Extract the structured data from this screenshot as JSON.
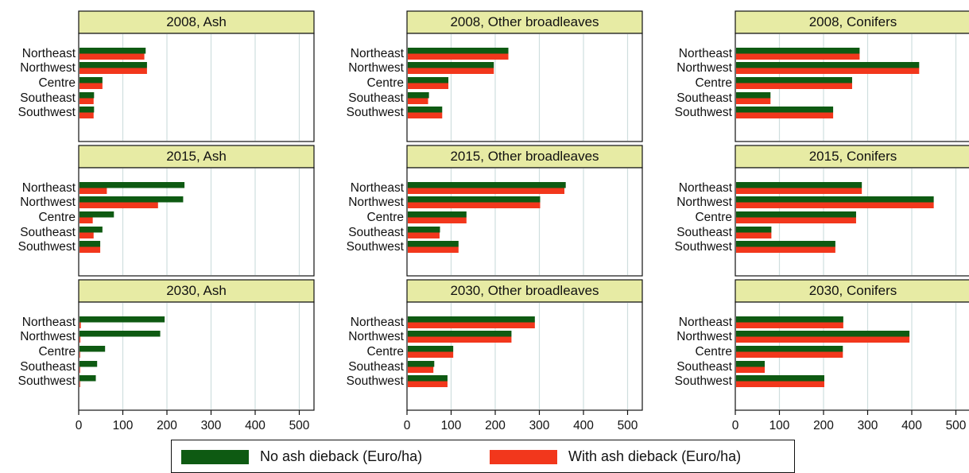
{
  "colors": {
    "no_dieback": "#0e5a12",
    "with_dieback": "#f2371c",
    "title_bg": "#e7eba4",
    "grid": "#cfdede"
  },
  "legend": {
    "no_dieback_label": "No ash dieback (Euro/ha)",
    "with_dieback_label": "With ash dieback (Euro/ha)",
    "placement": "bottom"
  },
  "chart_data": [
    {
      "type": "bar",
      "orientation": "horizontal",
      "title": "2008, Ash",
      "categories": [
        "Northeast",
        "Northwest",
        "Centre",
        "Southeast",
        "Southwest"
      ],
      "series": [
        {
          "name": "No ash dieback (Euro/ha)",
          "values": [
            150,
            153,
            52,
            33,
            33
          ]
        },
        {
          "name": "With ash dieback (Euro/ha)",
          "values": [
            147,
            153,
            52,
            32,
            32
          ]
        }
      ],
      "xlim": [
        0,
        550
      ],
      "xticks": [
        "0",
        "100",
        "200",
        "300",
        "400",
        "500"
      ],
      "grid": true
    },
    {
      "type": "bar",
      "orientation": "horizontal",
      "title": "2008, Other broadleaves",
      "categories": [
        "Northeast",
        "Northwest",
        "Centre",
        "Southeast",
        "Southwest"
      ],
      "series": [
        {
          "name": "No ash dieback (Euro/ha)",
          "values": [
            228,
            195,
            92,
            48,
            78
          ]
        },
        {
          "name": "With ash dieback (Euro/ha)",
          "values": [
            228,
            195,
            92,
            46,
            78
          ]
        }
      ],
      "xlim": [
        0,
        550
      ],
      "xticks": [
        "0",
        "100",
        "200",
        "300",
        "400",
        "500"
      ],
      "grid": true
    },
    {
      "type": "bar",
      "orientation": "horizontal",
      "title": "2008, Conifers",
      "categories": [
        "Northeast",
        "Northwest",
        "Centre",
        "Southeast",
        "Southwest"
      ],
      "series": [
        {
          "name": "No ash dieback (Euro/ha)",
          "values": [
            280,
            415,
            263,
            78,
            220
          ]
        },
        {
          "name": "With ash dieback (Euro/ha)",
          "values": [
            280,
            415,
            263,
            78,
            220
          ]
        }
      ],
      "xlim": [
        0,
        550
      ],
      "xticks": [
        "0",
        "100",
        "200",
        "300",
        "400",
        "500"
      ],
      "grid": true
    },
    {
      "type": "bar",
      "orientation": "horizontal",
      "title": "2015, Ash",
      "categories": [
        "Northeast",
        "Northwest",
        "Centre",
        "Southeast",
        "Southwest"
      ],
      "series": [
        {
          "name": "No ash dieback (Euro/ha)",
          "values": [
            238,
            235,
            78,
            52,
            47
          ]
        },
        {
          "name": "With ash dieback (Euro/ha)",
          "values": [
            62,
            178,
            30,
            32,
            47
          ]
        }
      ],
      "xlim": [
        0,
        550
      ],
      "xticks": [
        "0",
        "100",
        "200",
        "300",
        "400",
        "500"
      ],
      "grid": true
    },
    {
      "type": "bar",
      "orientation": "horizontal",
      "title": "2015, Other broadleaves",
      "categories": [
        "Northeast",
        "Northwest",
        "Centre",
        "Southeast",
        "Southwest"
      ],
      "series": [
        {
          "name": "No ash dieback (Euro/ha)",
          "values": [
            358,
            300,
            133,
            73,
            115
          ]
        },
        {
          "name": "With ash dieback (Euro/ha)",
          "values": [
            355,
            300,
            133,
            72,
            115
          ]
        }
      ],
      "xlim": [
        0,
        550
      ],
      "xticks": [
        "0",
        "100",
        "200",
        "300",
        "400",
        "500"
      ],
      "grid": true
    },
    {
      "type": "bar",
      "orientation": "horizontal",
      "title": "2015, Conifers",
      "categories": [
        "Northeast",
        "Northwest",
        "Centre",
        "Southeast",
        "Southwest"
      ],
      "series": [
        {
          "name": "No ash dieback (Euro/ha)",
          "values": [
            285,
            448,
            272,
            80,
            225
          ]
        },
        {
          "name": "With ash dieback (Euro/ha)",
          "values": [
            285,
            448,
            272,
            80,
            225
          ]
        }
      ],
      "xlim": [
        0,
        550
      ],
      "xticks": [
        "0",
        "100",
        "200",
        "300",
        "400",
        "500"
      ],
      "grid": true
    },
    {
      "type": "bar",
      "orientation": "horizontal",
      "title": "2030, Ash",
      "categories": [
        "Northeast",
        "Northwest",
        "Centre",
        "Southeast",
        "Southwest"
      ],
      "series": [
        {
          "name": "No ash dieback (Euro/ha)",
          "values": [
            193,
            183,
            58,
            40,
            37
          ]
        },
        {
          "name": "With ash dieback (Euro/ha)",
          "values": [
            3,
            2,
            1,
            1,
            1
          ]
        }
      ],
      "xlim": [
        0,
        550
      ],
      "xticks": [
        "0",
        "100",
        "200",
        "300",
        "400",
        "500"
      ],
      "grid": true
    },
    {
      "type": "bar",
      "orientation": "horizontal",
      "title": "2030, Other broadleaves",
      "categories": [
        "Northeast",
        "Northwest",
        "Centre",
        "Southeast",
        "Southwest"
      ],
      "series": [
        {
          "name": "No ash dieback (Euro/ha)",
          "values": [
            288,
            235,
            103,
            60,
            90
          ]
        },
        {
          "name": "With ash dieback (Euro/ha)",
          "values": [
            288,
            235,
            103,
            58,
            90
          ]
        }
      ],
      "xlim": [
        0,
        550
      ],
      "xticks": [
        "0",
        "100",
        "200",
        "300",
        "400",
        "500"
      ],
      "grid": true
    },
    {
      "type": "bar",
      "orientation": "horizontal",
      "title": "2030, Conifers",
      "categories": [
        "Northeast",
        "Northwest",
        "Centre",
        "Southeast",
        "Southwest"
      ],
      "series": [
        {
          "name": "No ash dieback (Euro/ha)",
          "values": [
            243,
            393,
            242,
            65,
            200
          ]
        },
        {
          "name": "With ash dieback (Euro/ha)",
          "values": [
            243,
            393,
            242,
            65,
            200
          ]
        }
      ],
      "xlim": [
        0,
        550
      ],
      "xticks": [
        "0",
        "100",
        "200",
        "300",
        "400",
        "500"
      ],
      "grid": true
    }
  ]
}
